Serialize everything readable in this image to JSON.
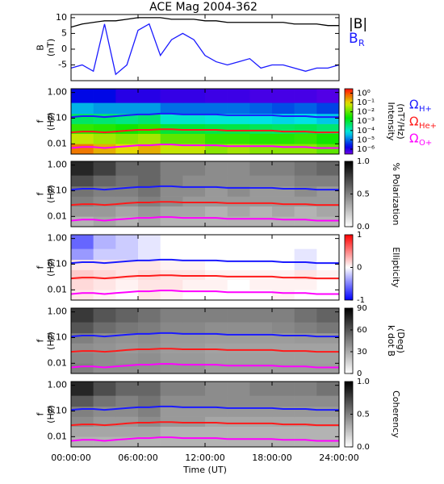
{
  "chart_data": [
    {
      "type": "line",
      "title": "ACE Mag 2004-362",
      "ylabel": [
        "B",
        "(nT)"
      ],
      "x": [
        0,
        1,
        2,
        3,
        4,
        5,
        6,
        7,
        8,
        9,
        10,
        11,
        12,
        13,
        14,
        15,
        16,
        17,
        18,
        19,
        20,
        21,
        22,
        23,
        24
      ],
      "xlim": [
        0,
        24
      ],
      "xticks": [
        0,
        6,
        12,
        18,
        24
      ],
      "ylim": [
        -10,
        11
      ],
      "yticks": [
        10,
        5,
        0,
        -5
      ],
      "series": [
        {
          "name": "|B|",
          "color": "#000000",
          "values": [
            7,
            8,
            8.5,
            9,
            9,
            9.5,
            10,
            10,
            10,
            9.5,
            9.5,
            9.5,
            9,
            9,
            8.5,
            8.5,
            8.5,
            8.5,
            8.5,
            8.5,
            8,
            8,
            8,
            7.5,
            7.5
          ]
        },
        {
          "name": "B",
          "subscript": "R",
          "color": "#1a1aff",
          "values": [
            -6,
            -5,
            -7,
            8,
            -8,
            -5,
            6,
            8,
            -2,
            3,
            5,
            3,
            -2,
            -4,
            -5,
            -4,
            -3,
            -6,
            -5,
            -5,
            -6,
            -7,
            -6,
            -6,
            -5
          ]
        }
      ]
    },
    {
      "type": "heatmap",
      "ylabel": [
        "f",
        "(Hz)"
      ],
      "yscale": "log",
      "ylim": [
        0.004,
        1.4
      ],
      "yticks": [
        {
          "value": 1,
          "label": "1.00"
        },
        {
          "value": 0.1,
          "label": "0.10"
        },
        {
          "value": 0.01,
          "label": "0.01"
        }
      ],
      "xlim": [
        0,
        24
      ],
      "xticks": [
        0,
        6,
        12,
        18,
        24
      ],
      "x_bins": [
        0,
        2,
        4,
        6,
        8,
        10,
        12,
        14,
        16,
        18,
        20,
        22,
        24
      ],
      "y_bins": [
        0.004,
        0.01,
        0.025,
        0.06,
        0.15,
        0.4,
        1.4
      ],
      "colormap": "rainbow",
      "cscale": "log",
      "clim": [
        3e-07,
        3
      ],
      "cbar_label": [
        "Intensity",
        "(nT²/Hz)"
      ],
      "cticks": [
        {
          "value": 1,
          "label": "10⁰"
        },
        {
          "value": 0.1,
          "label": "10⁻¹"
        },
        {
          "value": 0.01,
          "label": "10⁻²"
        },
        {
          "value": 0.001,
          "label": "10⁻³"
        },
        {
          "value": 0.0001,
          "label": "10⁻⁴"
        },
        {
          "value": 1e-05,
          "label": "10⁻⁵"
        },
        {
          "value": 1e-06,
          "label": "10⁻⁶"
        }
      ],
      "overlay_legend": true,
      "z": [
        [
          0.5,
          0.2,
          0.1,
          0.2,
          0.05,
          0.05,
          0.02,
          0.03,
          0.02,
          0.02,
          0.02,
          0.01
        ],
        [
          0.05,
          0.03,
          0.02,
          0.03,
          0.01,
          0.01,
          0.005,
          0.005,
          0.004,
          0.004,
          0.005,
          0.003
        ],
        [
          0.005,
          0.004,
          0.003,
          0.004,
          0.001,
          0.001,
          0.0008,
          0.0008,
          0.0006,
          0.0005,
          0.0006,
          0.0004
        ],
        [
          0.0005,
          0.0004,
          0.0003,
          0.0004,
          0.0001,
          0.0001,
          8e-05,
          8e-05,
          6e-05,
          5e-05,
          6e-05,
          4e-05
        ],
        [
          3e-05,
          2e-05,
          2e-05,
          2e-05,
          1e-05,
          1e-05,
          1e-05,
          1e-05,
          8e-06,
          6e-06,
          8e-06,
          5e-06
        ],
        [
          2e-06,
          2e-06,
          1e-06,
          1e-06,
          8e-07,
          8e-07,
          7e-07,
          7e-07,
          6e-07,
          6e-07,
          6e-07,
          5e-07
        ]
      ]
    },
    {
      "type": "heatmap",
      "ylabel": [
        "f",
        "(Hz)"
      ],
      "yscale": "log",
      "ylim": [
        0.004,
        1.4
      ],
      "yticks": [
        {
          "value": 1,
          "label": "1.00"
        },
        {
          "value": 0.1,
          "label": "0.10"
        },
        {
          "value": 0.01,
          "label": "0.01"
        }
      ],
      "xlim": [
        0,
        24
      ],
      "xticks": [
        0,
        6,
        12,
        18,
        24
      ],
      "x_bins": [
        0,
        2,
        4,
        6,
        8,
        10,
        12,
        14,
        16,
        18,
        20,
        22,
        24
      ],
      "y_bins": [
        0.004,
        0.01,
        0.025,
        0.06,
        0.15,
        0.4,
        1.4
      ],
      "colormap": "gray_r",
      "cscale": "linear",
      "clim": [
        0,
        1
      ],
      "cbar_label": [
        "% Polarization"
      ],
      "cticks": [
        {
          "value": 1,
          "label": "1.0"
        },
        {
          "value": 0.5,
          "label": "0.5"
        },
        {
          "value": 0,
          "label": "0.0"
        }
      ],
      "z": [
        [
          0.3,
          0.35,
          0.3,
          0.35,
          0.3,
          0.3,
          0.3,
          0.3,
          0.3,
          0.3,
          0.3,
          0.3
        ],
        [
          0.4,
          0.4,
          0.35,
          0.4,
          0.35,
          0.35,
          0.3,
          0.35,
          0.3,
          0.35,
          0.3,
          0.35
        ],
        [
          0.5,
          0.45,
          0.45,
          0.5,
          0.45,
          0.4,
          0.4,
          0.4,
          0.4,
          0.4,
          0.4,
          0.4
        ],
        [
          0.55,
          0.5,
          0.5,
          0.55,
          0.45,
          0.45,
          0.4,
          0.45,
          0.4,
          0.4,
          0.45,
          0.4
        ],
        [
          0.7,
          0.6,
          0.55,
          0.6,
          0.5,
          0.45,
          0.45,
          0.45,
          0.45,
          0.45,
          0.5,
          0.5
        ],
        [
          0.85,
          0.75,
          0.6,
          0.6,
          0.5,
          0.5,
          0.45,
          0.45,
          0.5,
          0.5,
          0.55,
          0.6
        ]
      ]
    },
    {
      "type": "heatmap",
      "ylabel": [
        "f",
        "(Hz)"
      ],
      "yscale": "log",
      "ylim": [
        0.004,
        1.4
      ],
      "yticks": [
        {
          "value": 1,
          "label": "1.00"
        },
        {
          "value": 0.1,
          "label": "0.10"
        },
        {
          "value": 0.01,
          "label": "0.01"
        }
      ],
      "xlim": [
        0,
        24
      ],
      "xticks": [
        0,
        6,
        12,
        18,
        24
      ],
      "x_bins": [
        0,
        2,
        4,
        6,
        8,
        10,
        12,
        14,
        16,
        18,
        20,
        22,
        24
      ],
      "y_bins": [
        0.004,
        0.01,
        0.025,
        0.06,
        0.15,
        0.4,
        1.4
      ],
      "colormap": "bwr",
      "cscale": "linear",
      "clim": [
        -1,
        1
      ],
      "cbar_label": [
        "Ellipticity"
      ],
      "cticks": [
        1,
        0,
        -1
      ],
      "z": [
        [
          0.1,
          0.05,
          0,
          0.1,
          0.05,
          0,
          0,
          0,
          0,
          0.05,
          0,
          0
        ],
        [
          0.15,
          0.1,
          0.05,
          0.1,
          0.1,
          0.05,
          0.05,
          0,
          0.05,
          0.05,
          0.05,
          0
        ],
        [
          0.2,
          0.15,
          0.1,
          0.15,
          0.1,
          0.1,
          0.05,
          0.05,
          0.05,
          0.05,
          0.1,
          0.05
        ],
        [
          0.1,
          0.1,
          0.1,
          0.1,
          0.05,
          0.05,
          0,
          0,
          0,
          0,
          -0.1,
          0
        ],
        [
          -0.4,
          -0.2,
          -0.2,
          -0.1,
          0,
          0,
          0,
          0,
          0,
          0,
          -0.1,
          0
        ],
        [
          -0.6,
          -0.3,
          -0.2,
          -0.1,
          0,
          0,
          0,
          0,
          0,
          0,
          0,
          0
        ]
      ]
    },
    {
      "type": "heatmap",
      "ylabel": [
        "f",
        "(Hz)"
      ],
      "yscale": "log",
      "ylim": [
        0.004,
        1.4
      ],
      "yticks": [
        {
          "value": 1,
          "label": "1.00"
        },
        {
          "value": 0.1,
          "label": "0.10"
        },
        {
          "value": 0.01,
          "label": "0.01"
        }
      ],
      "xlim": [
        0,
        24
      ],
      "xticks": [
        0,
        6,
        12,
        18,
        24
      ],
      "x_bins": [
        0,
        2,
        4,
        6,
        8,
        10,
        12,
        14,
        16,
        18,
        20,
        22,
        24
      ],
      "y_bins": [
        0.004,
        0.01,
        0.025,
        0.06,
        0.15,
        0.4,
        1.4
      ],
      "colormap": "gray_r",
      "cscale": "linear",
      "clim": [
        0,
        90
      ],
      "cbar_label": [
        "k dot B",
        "(Deg)"
      ],
      "cticks": [
        90,
        60,
        30,
        0
      ],
      "z": [
        [
          45,
          40,
          40,
          40,
          38,
          38,
          35,
          35,
          35,
          35,
          35,
          35
        ],
        [
          42,
          40,
          38,
          40,
          36,
          36,
          34,
          34,
          34,
          34,
          34,
          34
        ],
        [
          40,
          38,
          36,
          38,
          35,
          35,
          33,
          33,
          33,
          33,
          33,
          33
        ],
        [
          45,
          40,
          38,
          40,
          36,
          36,
          35,
          35,
          35,
          35,
          36,
          36
        ],
        [
          60,
          52,
          48,
          46,
          42,
          42,
          40,
          40,
          40,
          42,
          45,
          48
        ],
        [
          70,
          60,
          55,
          50,
          45,
          45,
          45,
          45,
          45,
          45,
          50,
          55
        ]
      ]
    },
    {
      "type": "heatmap",
      "ylabel": [
        "f",
        "(Hz)"
      ],
      "yscale": "log",
      "ylim": [
        0.004,
        1.4
      ],
      "yticks": [
        {
          "value": 1,
          "label": "1.00"
        },
        {
          "value": 0.1,
          "label": "0.10"
        },
        {
          "value": 0.01,
          "label": "0.01"
        }
      ],
      "xlim": [
        0,
        24
      ],
      "xticks": [
        {
          "value": 0,
          "label": "00:00:00"
        },
        {
          "value": 6,
          "label": "06:00:00"
        },
        {
          "value": 12,
          "label": "12:00:00"
        },
        {
          "value": 18,
          "label": "18:00:00"
        },
        {
          "value": 24,
          "label": "24:00:00"
        }
      ],
      "xlabel": "Time (UT)",
      "x_bins": [
        0,
        2,
        4,
        6,
        8,
        10,
        12,
        14,
        16,
        18,
        20,
        22,
        24
      ],
      "y_bins": [
        0.004,
        0.01,
        0.025,
        0.06,
        0.15,
        0.4,
        1.4
      ],
      "colormap": "gray_r",
      "cscale": "linear",
      "clim": [
        0,
        1
      ],
      "cbar_label": [
        "Coherency"
      ],
      "cticks": [
        {
          "value": 1,
          "label": "1.0"
        },
        {
          "value": 0.5,
          "label": "0.5"
        },
        {
          "value": 0,
          "label": "0.0"
        }
      ],
      "z": [
        [
          0.3,
          0.3,
          0.3,
          0.3,
          0.3,
          0.3,
          0.3,
          0.3,
          0.3,
          0.3,
          0.3,
          0.3
        ],
        [
          0.35,
          0.35,
          0.35,
          0.35,
          0.3,
          0.3,
          0.3,
          0.3,
          0.3,
          0.3,
          0.3,
          0.3
        ],
        [
          0.45,
          0.4,
          0.4,
          0.45,
          0.4,
          0.4,
          0.35,
          0.35,
          0.35,
          0.35,
          0.35,
          0.35
        ],
        [
          0.5,
          0.45,
          0.45,
          0.5,
          0.4,
          0.4,
          0.4,
          0.4,
          0.4,
          0.4,
          0.4,
          0.4
        ],
        [
          0.65,
          0.55,
          0.5,
          0.55,
          0.45,
          0.45,
          0.45,
          0.45,
          0.45,
          0.45,
          0.45,
          0.45
        ],
        [
          0.85,
          0.7,
          0.6,
          0.6,
          0.5,
          0.5,
          0.45,
          0.45,
          0.5,
          0.5,
          0.5,
          0.55
        ]
      ]
    }
  ],
  "overlay": {
    "x": [
      0,
      1,
      2,
      3,
      4,
      5,
      6,
      7,
      8,
      9,
      10,
      11,
      12,
      13,
      14,
      15,
      16,
      17,
      18,
      19,
      20,
      21,
      22,
      23,
      24
    ],
    "series": [
      {
        "name": "Ω",
        "subscript": "H+",
        "color": "#1a1aff",
        "values": [
          0.11,
          0.12,
          0.12,
          0.11,
          0.12,
          0.13,
          0.14,
          0.14,
          0.15,
          0.15,
          0.14,
          0.14,
          0.14,
          0.14,
          0.13,
          0.13,
          0.13,
          0.13,
          0.13,
          0.12,
          0.12,
          0.12,
          0.11,
          0.11,
          0.11
        ]
      },
      {
        "name": "Ω",
        "subscript": "He+",
        "color": "#ff1a1a",
        "values": [
          0.028,
          0.03,
          0.03,
          0.028,
          0.03,
          0.033,
          0.035,
          0.035,
          0.037,
          0.037,
          0.035,
          0.035,
          0.035,
          0.035,
          0.033,
          0.033,
          0.033,
          0.033,
          0.033,
          0.03,
          0.03,
          0.03,
          0.028,
          0.028,
          0.028
        ]
      },
      {
        "name": "Ω",
        "subscript": "O+",
        "color": "#ff00ff",
        "values": [
          0.0069,
          0.0075,
          0.0075,
          0.0069,
          0.0075,
          0.0081,
          0.0088,
          0.0088,
          0.0094,
          0.0094,
          0.0088,
          0.0088,
          0.0088,
          0.0088,
          0.0081,
          0.0081,
          0.0081,
          0.0081,
          0.0081,
          0.0075,
          0.0075,
          0.0075,
          0.0069,
          0.0069,
          0.0069
        ]
      }
    ]
  }
}
